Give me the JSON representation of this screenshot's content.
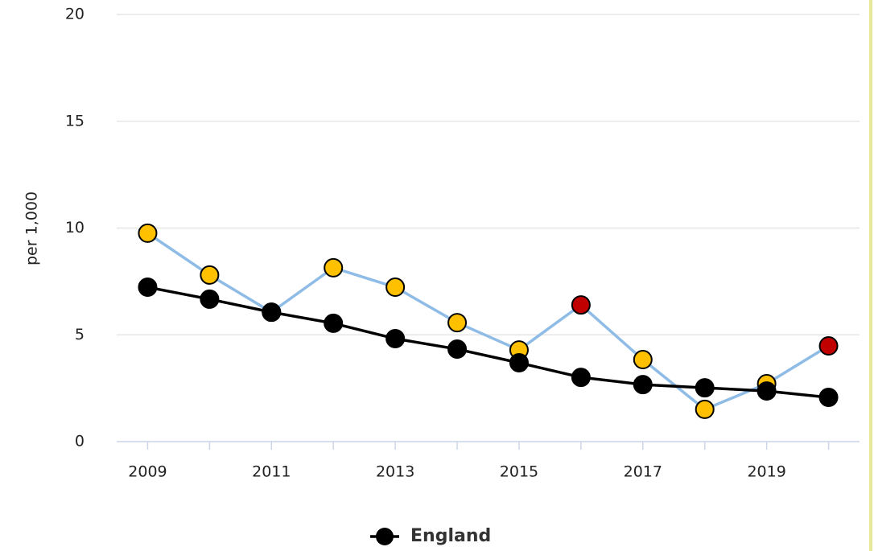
{
  "chart_data": {
    "type": "line",
    "y_label": "per 1,000",
    "x": [
      2009,
      2010,
      2011,
      2012,
      2013,
      2014,
      2015,
      2016,
      2017,
      2018,
      2019,
      2020
    ],
    "series": [
      {
        "color": "#8fbce6",
        "values": [
          9.76,
          7.8,
          6.06,
          8.14,
          7.23,
          5.57,
          4.29,
          6.4,
          3.84,
          1.51,
          2.71,
          4.48
        ],
        "marker_colors": [
          "#ffc000",
          "#ffc000",
          "#ffc000",
          "#ffc000",
          "#ffc000",
          "#ffc000",
          "#ffc000",
          "#c00000",
          "#ffc000",
          "#ffc000",
          "#ffc000",
          "#c00000"
        ]
      },
      {
        "name": "England",
        "color": "#000000",
        "values": [
          7.23,
          6.67,
          6.06,
          5.54,
          4.82,
          4.33,
          3.69,
          3.01,
          2.67,
          2.52,
          2.37,
          2.07
        ]
      }
    ],
    "xlim": [
      2008.5,
      2020.5
    ],
    "xticks": [
      2009,
      2011,
      2013,
      2015,
      2017,
      2019
    ],
    "ylim": [
      0,
      20
    ],
    "yticks": [
      0,
      5,
      10,
      15,
      20
    ],
    "grid": true,
    "legend": "bottom"
  }
}
